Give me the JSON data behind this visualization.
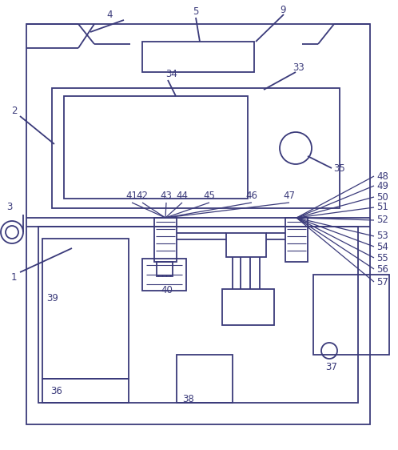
{
  "bg_color": "#ffffff",
  "line_color": "#3a3a7a",
  "figsize": [
    4.98,
    5.62
  ],
  "dpi": 100
}
